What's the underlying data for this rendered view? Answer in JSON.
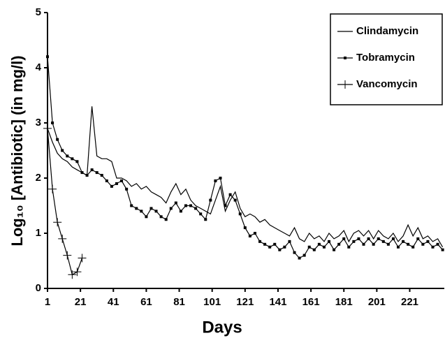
{
  "chart_data": {
    "type": "line",
    "xlabel": "Days",
    "ylabel": "Log₁₀ [Antibiotic] (in mg/l)",
    "xlim": [
      1,
      242
    ],
    "ylim": [
      0,
      5
    ],
    "xticks": [
      1,
      21,
      41,
      61,
      81,
      101,
      121,
      141,
      161,
      181,
      201,
      221
    ],
    "yticks": [
      0,
      1,
      2,
      3,
      4,
      5
    ],
    "legend": "upper right",
    "x": [
      1,
      4,
      7,
      10,
      13,
      16,
      19,
      22,
      25,
      28,
      31,
      34,
      37,
      40,
      43,
      46,
      49,
      52,
      55,
      58,
      61,
      64,
      67,
      70,
      73,
      76,
      79,
      82,
      85,
      88,
      91,
      94,
      97,
      100,
      103,
      106,
      109,
      112,
      115,
      118,
      121,
      124,
      127,
      130,
      133,
      136,
      139,
      142,
      145,
      148,
      151,
      154,
      157,
      160,
      163,
      166,
      169,
      172,
      175,
      178,
      181,
      184,
      187,
      190,
      193,
      196,
      199,
      202,
      205,
      208,
      211,
      214,
      217,
      220,
      223,
      226,
      229,
      232,
      235,
      238,
      241
    ],
    "series": [
      {
        "name": "Clindamycin",
        "color": "#000000",
        "marker": "none",
        "values": [
          2.9,
          2.65,
          2.45,
          2.35,
          2.3,
          2.2,
          2.15,
          2.1,
          2.05,
          3.3,
          2.4,
          2.35,
          2.35,
          2.3,
          2.0,
          2.0,
          1.95,
          1.85,
          1.9,
          1.8,
          1.85,
          1.75,
          1.7,
          1.65,
          1.55,
          1.75,
          1.9,
          1.7,
          1.8,
          1.6,
          1.5,
          1.45,
          1.4,
          1.35,
          1.6,
          1.85,
          1.4,
          1.6,
          1.75,
          1.45,
          1.3,
          1.35,
          1.3,
          1.2,
          1.25,
          1.15,
          1.1,
          1.05,
          1.0,
          0.95,
          1.1,
          0.9,
          0.85,
          1.0,
          0.9,
          0.95,
          0.85,
          1.0,
          0.9,
          0.95,
          1.05,
          0.85,
          1.0,
          1.05,
          0.95,
          1.05,
          0.9,
          1.05,
          0.95,
          0.9,
          1.0,
          0.85,
          0.95,
          1.15,
          0.95,
          1.1,
          0.9,
          0.95,
          0.85,
          0.9,
          0.75
        ]
      },
      {
        "name": "Tobramycin",
        "color": "#000000",
        "marker": "square",
        "values": [
          4.2,
          3.0,
          2.7,
          2.5,
          2.4,
          2.35,
          2.3,
          2.1,
          2.05,
          2.15,
          2.1,
          2.05,
          1.95,
          1.85,
          1.9,
          1.95,
          1.8,
          1.5,
          1.45,
          1.4,
          1.3,
          1.45,
          1.4,
          1.3,
          1.25,
          1.45,
          1.55,
          1.4,
          1.5,
          1.5,
          1.45,
          1.35,
          1.25,
          1.6,
          1.95,
          2.0,
          1.5,
          1.7,
          1.6,
          1.35,
          1.1,
          0.95,
          1.0,
          0.85,
          0.8,
          0.75,
          0.8,
          0.7,
          0.75,
          0.85,
          0.65,
          0.55,
          0.6,
          0.75,
          0.7,
          0.8,
          0.75,
          0.85,
          0.7,
          0.8,
          0.9,
          0.75,
          0.85,
          0.9,
          0.8,
          0.9,
          0.8,
          0.9,
          0.85,
          0.8,
          0.9,
          0.75,
          0.85,
          0.8,
          0.75,
          0.9,
          0.8,
          0.85,
          0.75,
          0.8,
          0.7
        ]
      },
      {
        "name": "Vancomycin",
        "color": "#000000",
        "marker": "plus",
        "values": [
          2.9,
          1.8,
          1.2,
          0.9,
          0.6,
          0.25,
          0.3,
          0.55,
          null,
          null,
          null,
          null,
          null,
          null,
          null,
          null,
          null,
          null,
          null,
          null,
          null,
          null,
          null,
          null,
          null,
          null,
          null,
          null,
          null,
          null,
          null,
          null,
          null,
          null,
          null,
          null,
          null,
          null,
          null,
          null,
          null,
          null,
          null,
          null,
          null,
          null,
          null,
          null,
          null,
          null,
          null,
          null,
          null,
          null,
          null,
          null,
          null,
          null,
          null,
          null,
          null,
          null,
          null,
          null,
          null,
          null,
          null,
          null,
          null,
          null,
          null,
          null,
          null,
          null,
          null,
          null,
          null,
          null,
          null,
          null,
          null
        ]
      }
    ]
  }
}
